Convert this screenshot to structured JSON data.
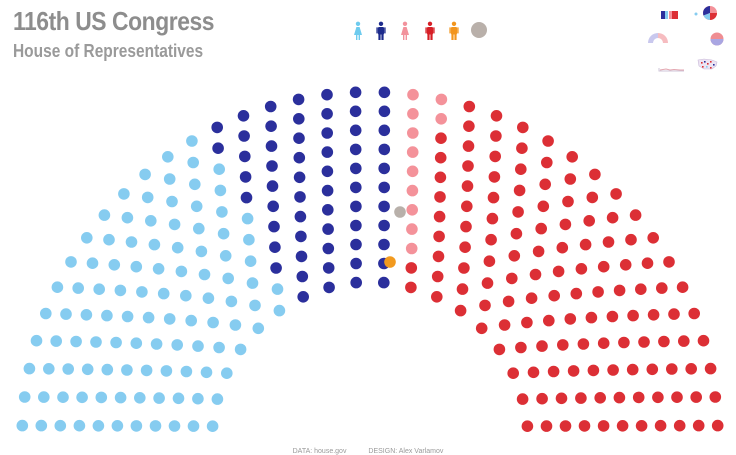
{
  "header": {
    "title": "116th US Congress",
    "subtitle": "House of Representatives"
  },
  "filters": [
    {
      "name": "women-democrats-filter",
      "icon": "woman-icon",
      "color": "#6ecbee"
    },
    {
      "name": "men-democrats-filter",
      "icon": "man-icon",
      "color": "#1c2a8c"
    },
    {
      "name": "women-republicans-filter",
      "icon": "woman-icon",
      "color": "#f2929c"
    },
    {
      "name": "men-republicans-filter",
      "icon": "man-icon",
      "color": "#d61f26"
    },
    {
      "name": "independent-filter",
      "icon": "person-icon",
      "color": "#f2951d"
    },
    {
      "name": "vacant-filter",
      "icon": "circle-icon",
      "color": "#b9b0aa"
    }
  ],
  "thumbnails": [
    {
      "name": "bar-view-thumbnail",
      "icon": "bar-icon"
    },
    {
      "name": "pie-view-thumbnail",
      "icon": "pie-icon"
    },
    {
      "name": "hemicycle-view-thumbnail",
      "icon": "hemicycle-icon"
    },
    {
      "name": "circle-split-view-thumbnail",
      "icon": "circle-split-icon"
    },
    {
      "name": "map-view-thumbnail",
      "icon": "map-icon"
    }
  ],
  "colors": {
    "women_democrats": "#86ccf0",
    "men_democrats": "#2b2f9c",
    "women_republicans": "#f4929a",
    "men_republicans": "#dc2f35",
    "independent": "#f29a1f",
    "vacant": "#b8b0aa"
  },
  "chart_data": {
    "type": "hemicycle",
    "groups": [
      {
        "key": "women_democrats",
        "color": "#86ccf0"
      },
      {
        "key": "men_democrats",
        "color": "#2b2f9c"
      },
      {
        "key": "independent",
        "color": "#f29a1f"
      },
      {
        "key": "vacant",
        "color": "#b8b0aa"
      },
      {
        "key": "women_republicans",
        "color": "#f4929a"
      },
      {
        "key": "men_republicans",
        "color": "#dc2f35"
      }
    ]
  },
  "footer": {
    "data": "DATA: house.gov",
    "design": "DESIGN: Alex Varlamov"
  }
}
